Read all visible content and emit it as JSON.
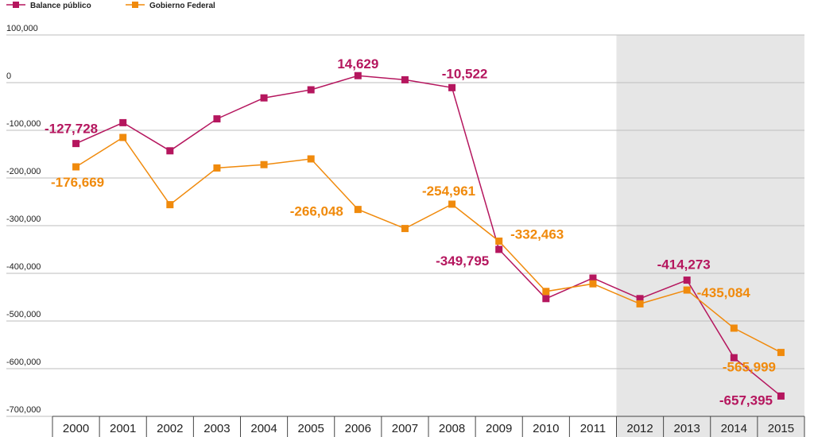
{
  "chart_data": {
    "type": "line",
    "categories": [
      "2000",
      "2001",
      "2002",
      "2003",
      "2004",
      "2005",
      "2006",
      "2007",
      "2008",
      "2009",
      "2010",
      "2011",
      "2012",
      "2013",
      "2014",
      "2015"
    ],
    "ylim": [
      -700000,
      100000
    ],
    "yticks": [
      100000,
      0,
      -100000,
      -200000,
      -300000,
      -400000,
      -500000,
      -600000,
      -700000
    ],
    "ytick_labels": [
      "100,000",
      "0",
      "-100,000",
      "-200,000",
      "-300,000",
      "-400,000",
      "-500,000",
      "-600,000",
      "-700,000"
    ],
    "shaded_categories": [
      "2012",
      "2013",
      "2014",
      "2015"
    ],
    "shaded_color": "#e6e6e6",
    "grid": true,
    "legend_position": "top-left",
    "series": [
      {
        "name": "Balance público",
        "color": "#b5165e",
        "marker": "square",
        "values": [
          -127728,
          -84000,
          -143000,
          -76000,
          -32000,
          -15000,
          14629,
          6000,
          -10522,
          -349795,
          -453000,
          -410000,
          -453000,
          -414273,
          -577000,
          -657395
        ]
      },
      {
        "name": "Gobierno Federal",
        "color": "#f08a0c",
        "marker": "square",
        "values": [
          -176669,
          -115000,
          -256000,
          -179000,
          -172000,
          -160000,
          -266048,
          -306000,
          -254961,
          -332463,
          -438000,
          -422000,
          -464000,
          -435084,
          -515000,
          -565999
        ]
      }
    ],
    "data_labels": [
      {
        "series": 0,
        "index": 0,
        "text": "-127,728"
      },
      {
        "series": 0,
        "index": 6,
        "text": "14,629"
      },
      {
        "series": 0,
        "index": 8,
        "text": "-10,522"
      },
      {
        "series": 0,
        "index": 9,
        "text": "-349,795"
      },
      {
        "series": 0,
        "index": 13,
        "text": "-414,273"
      },
      {
        "series": 0,
        "index": 15,
        "text": "-657,395"
      },
      {
        "series": 1,
        "index": 0,
        "text": "-176,669"
      },
      {
        "series": 1,
        "index": 6,
        "text": "-266,048"
      },
      {
        "series": 1,
        "index": 8,
        "text": "-254,961"
      },
      {
        "series": 1,
        "index": 9,
        "text": "-332,463"
      },
      {
        "series": 1,
        "index": 13,
        "text": "-435,084"
      },
      {
        "series": 1,
        "index": 15,
        "text": "-565,999"
      }
    ]
  }
}
